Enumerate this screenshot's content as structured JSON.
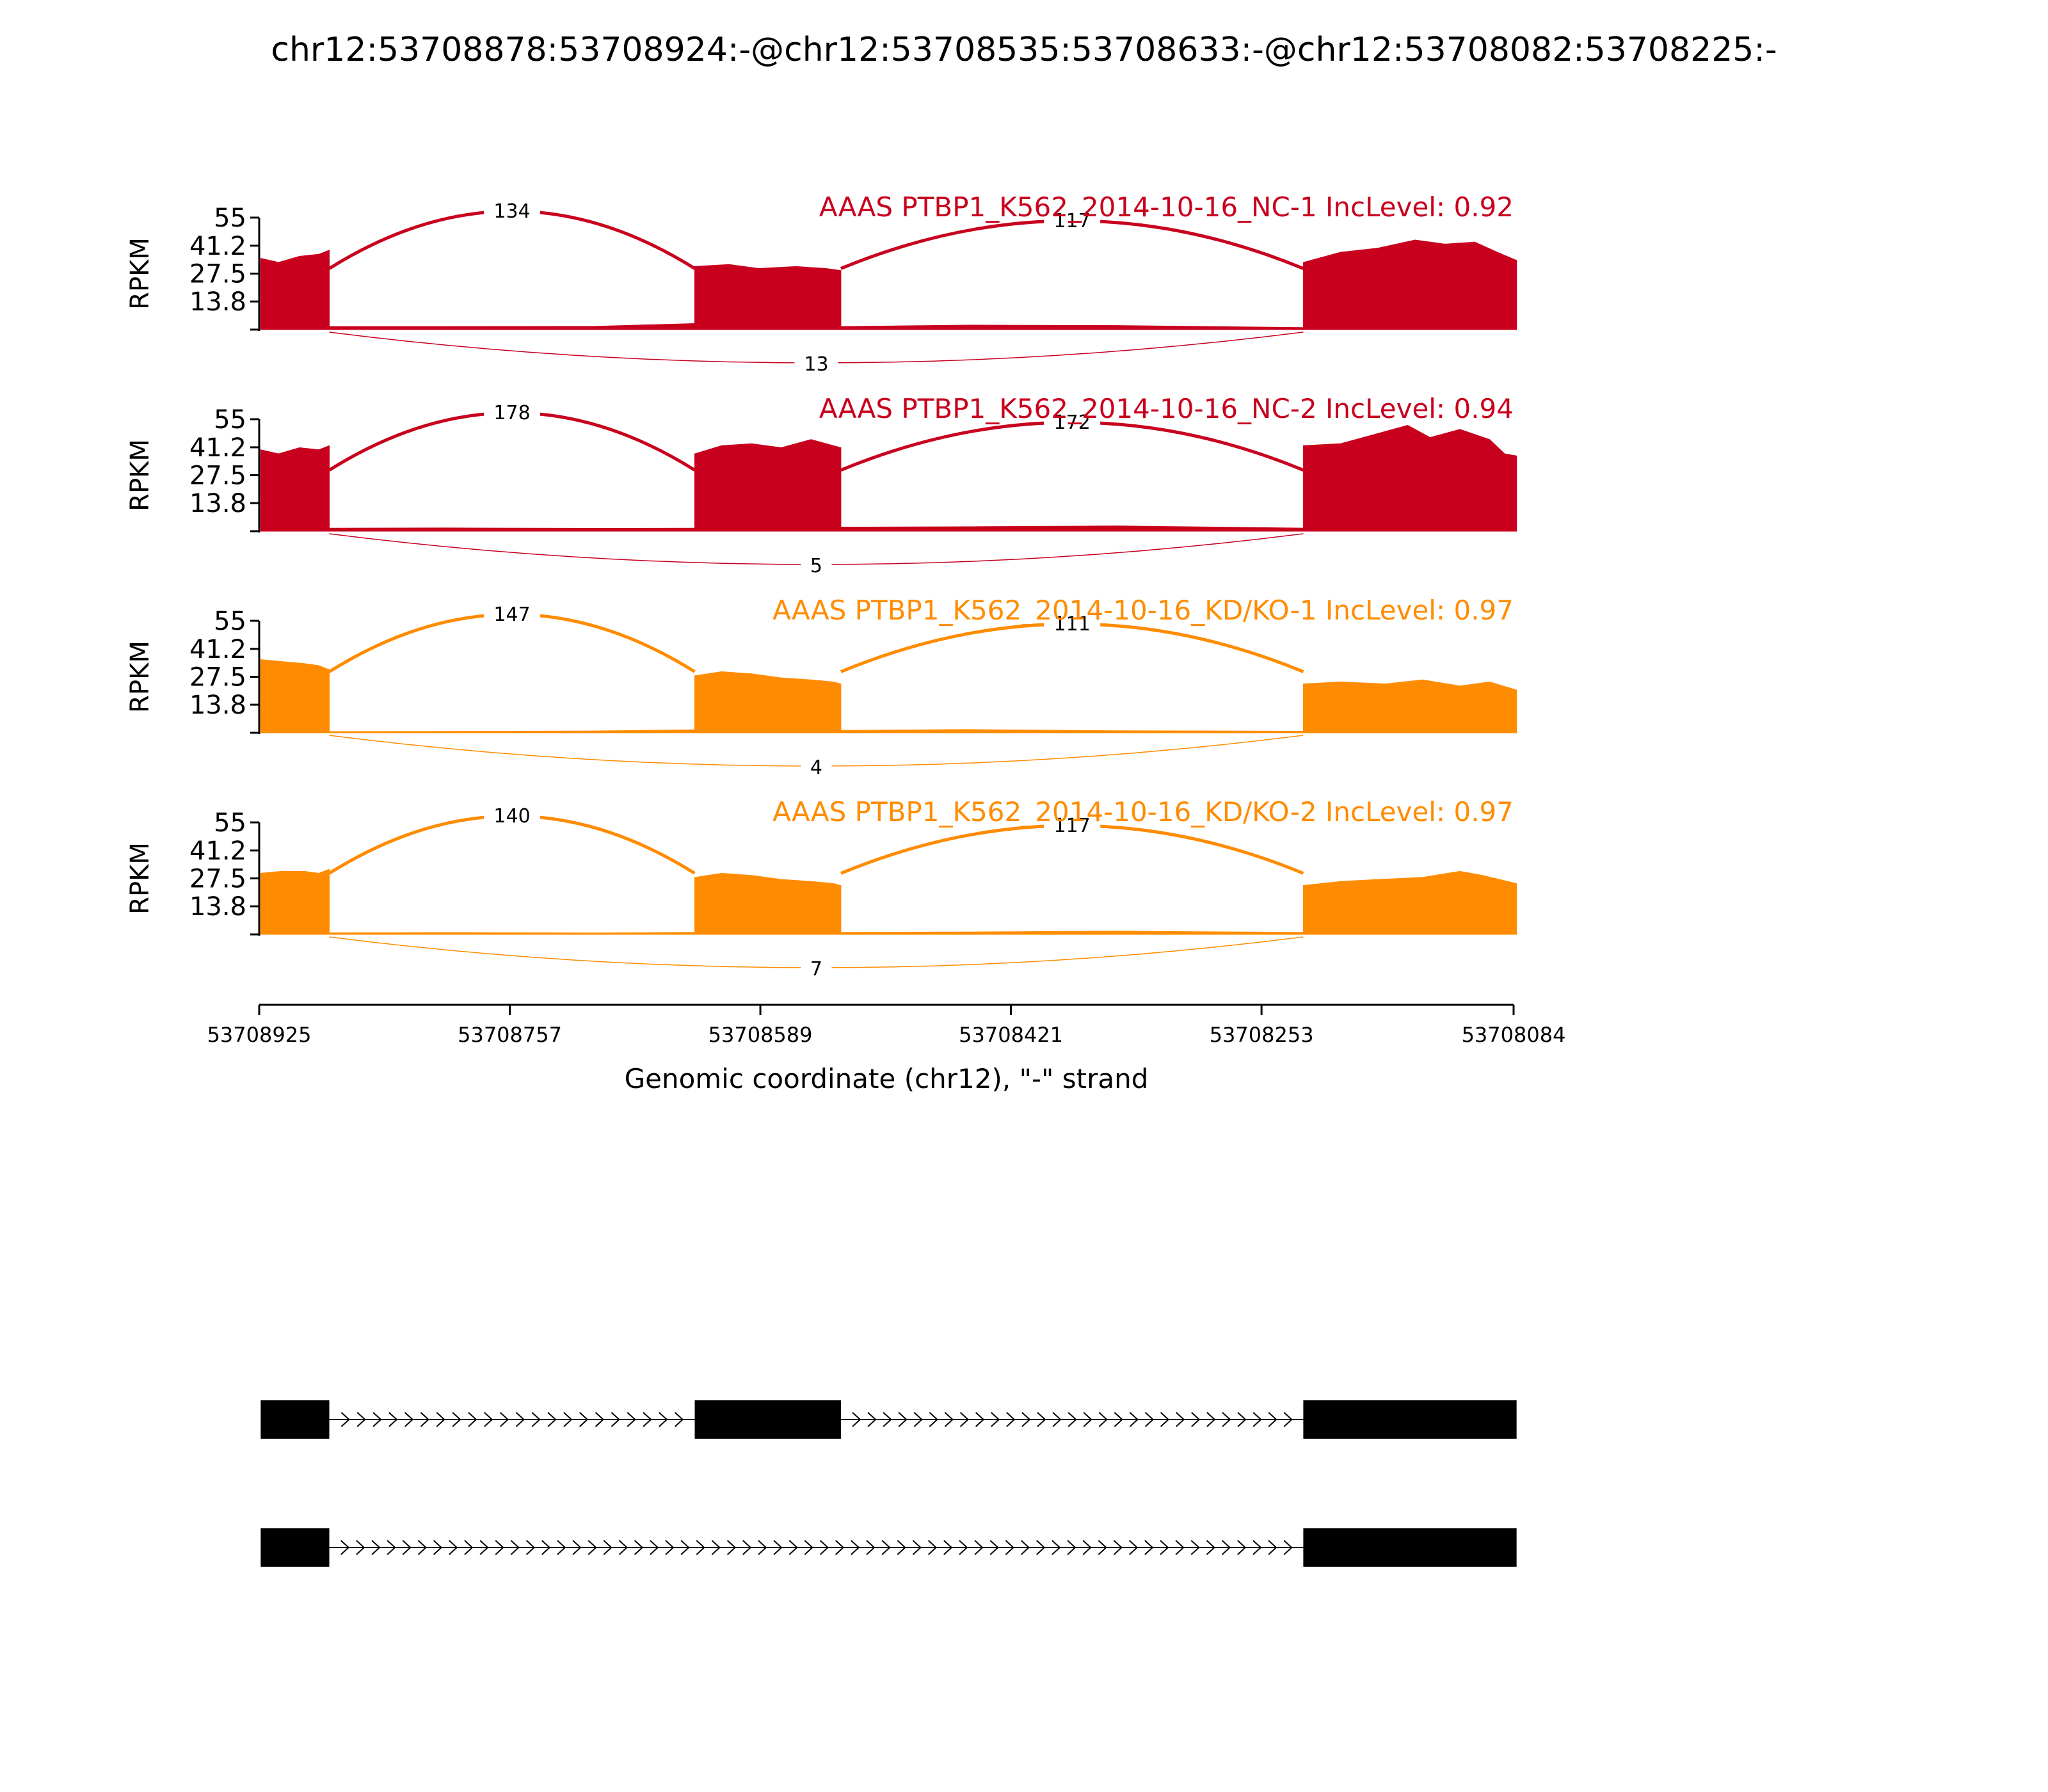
{
  "chart_data": {
    "type": "area",
    "title": "chr12:53708878:53708924:-@chr12:53708535:53708633:-@chr12:53708082:53708225:-",
    "ylabel": "RPKM",
    "xlabel": "Genomic coordinate (chr12), \"-\" strand",
    "x_range": [
      53708925,
      53708084
    ],
    "x_ticks": [
      "53708925",
      "53708757",
      "53708589",
      "53708421",
      "53708253",
      "53708084"
    ],
    "y_ticks": [
      "55",
      "41.2",
      "27.5",
      "13.8"
    ],
    "ylim": [
      0,
      55
    ],
    "exons": [
      [
        53708924,
        53708878
      ],
      [
        53708633,
        53708535
      ],
      [
        53708225,
        53708082
      ]
    ],
    "colors": {
      "NC": "#c8001e",
      "KD": "#ff8c00"
    },
    "series": [
      {
        "name": "AAAS PTBP1_K562_2014-10-16_NC-1 IncLevel: 0.92",
        "group": "NC",
        "coverage": [
          {
            "x": [
              53708924,
              53708912,
              53708898,
              53708885,
              53708878
            ],
            "y": [
              35,
              33,
              36,
              37,
              39
            ]
          },
          {
            "x": [
              53708878,
              53708800,
              53708700,
              53708633
            ],
            "y": [
              1.5,
              1.5,
              1.6,
              3
            ]
          },
          {
            "x": [
              53708633,
              53708610,
              53708590,
              53708565,
              53708545,
              53708535
            ],
            "y": [
              31,
              32,
              30,
              31,
              30,
              29
            ]
          },
          {
            "x": [
              53708535,
              53708450,
              53708350,
              53708225
            ],
            "y": [
              1.5,
              2.2,
              2.0,
              1
            ]
          },
          {
            "x": [
              53708225,
              53708200,
              53708175,
              53708150,
              53708130,
              53708110,
              53708095,
              53708082
            ],
            "y": [
              33,
              38,
              40,
              44,
              42,
              43,
              38,
              34
            ]
          }
        ],
        "junctions": [
          {
            "from": 53708878,
            "to": 53708633,
            "count": "134",
            "side": "above"
          },
          {
            "from": 53708535,
            "to": 53708225,
            "count": "117",
            "side": "above"
          },
          {
            "from": 53708878,
            "to": 53708225,
            "count": "13",
            "side": "below"
          }
        ]
      },
      {
        "name": "AAAS PTBP1_K562_2014-10-16_NC-2 IncLevel: 0.94",
        "group": "NC",
        "coverage": [
          {
            "x": [
              53708924,
              53708912,
              53708898,
              53708885,
              53708878
            ],
            "y": [
              40,
              38,
              41,
              40,
              42
            ]
          },
          {
            "x": [
              53708878,
              53708800,
              53708700,
              53708633
            ],
            "y": [
              1.5,
              1.6,
              1.4,
              1.5
            ]
          },
          {
            "x": [
              53708633,
              53708615,
              53708595,
              53708575,
              53708555,
              53708540,
              53708535
            ],
            "y": [
              38,
              42,
              43,
              41,
              45,
              42,
              41
            ]
          },
          {
            "x": [
              53708535,
              53708450,
              53708350,
              53708225
            ],
            "y": [
              2,
              2.2,
              2.6,
              1.5
            ]
          },
          {
            "x": [
              53708225,
              53708200,
              53708175,
              53708155,
              53708140,
              53708120,
              53708100,
              53708090,
              53708082
            ],
            "y": [
              42,
              43,
              48,
              52,
              46,
              50,
              45,
              38,
              37
            ]
          }
        ],
        "junctions": [
          {
            "from": 53708878,
            "to": 53708633,
            "count": "178",
            "side": "above"
          },
          {
            "from": 53708535,
            "to": 53708225,
            "count": "172",
            "side": "above"
          },
          {
            "from": 53708878,
            "to": 53708225,
            "count": "5",
            "side": "below"
          }
        ]
      },
      {
        "name": "AAAS PTBP1_K562_2014-10-16_KD/KO-1 IncLevel: 0.97",
        "group": "KD",
        "coverage": [
          {
            "x": [
              53708924,
              53708910,
              53708895,
              53708885,
              53708878
            ],
            "y": [
              36,
              35,
              34,
              33,
              31
            ]
          },
          {
            "x": [
              53708878,
              53708800,
              53708700,
              53708633
            ],
            "y": [
              0.6,
              0.7,
              0.9,
              1.5
            ]
          },
          {
            "x": [
              53708633,
              53708615,
              53708595,
              53708575,
              53708555,
              53708540,
              53708535
            ],
            "y": [
              28,
              30,
              29,
              27,
              26,
              25,
              24
            ]
          },
          {
            "x": [
              53708535,
              53708450,
              53708350,
              53708225
            ],
            "y": [
              1.2,
              1.6,
              1.0,
              0.8
            ]
          },
          {
            "x": [
              53708225,
              53708200,
              53708170,
              53708145,
              53708120,
              53708100,
              53708082
            ],
            "y": [
              24,
              25,
              24,
              26,
              23,
              25,
              21
            ]
          }
        ],
        "junctions": [
          {
            "from": 53708878,
            "to": 53708633,
            "count": "147",
            "side": "above"
          },
          {
            "from": 53708535,
            "to": 53708225,
            "count": "111",
            "side": "above"
          },
          {
            "from": 53708878,
            "to": 53708225,
            "count": "4",
            "side": "below"
          }
        ]
      },
      {
        "name": "AAAS PTBP1_K562_2014-10-16_KD/KO-2 IncLevel: 0.97",
        "group": "KD",
        "coverage": [
          {
            "x": [
              53708924,
              53708910,
              53708895,
              53708885,
              53708878
            ],
            "y": [
              30,
              31,
              31,
              30,
              32
            ]
          },
          {
            "x": [
              53708878,
              53708800,
              53708700,
              53708633
            ],
            "y": [
              0.8,
              0.9,
              0.7,
              1
            ]
          },
          {
            "x": [
              53708633,
              53708615,
              53708595,
              53708575,
              53708555,
              53708540,
              53708535
            ],
            "y": [
              28,
              30,
              29,
              27,
              26,
              25,
              24
            ]
          },
          {
            "x": [
              53708535,
              53708450,
              53708350,
              53708225
            ],
            "y": [
              1.0,
              1.2,
              1.6,
              1
            ]
          },
          {
            "x": [
              53708225,
              53708200,
              53708175,
              53708145,
              53708120,
              53708105,
              53708082
            ],
            "y": [
              24,
              26,
              27,
              28,
              31,
              29,
              25
            ]
          }
        ],
        "junctions": [
          {
            "from": 53708878,
            "to": 53708633,
            "count": "140",
            "side": "above"
          },
          {
            "from": 53708535,
            "to": 53708225,
            "count": "117",
            "side": "above"
          },
          {
            "from": 53708878,
            "to": 53708225,
            "count": "7",
            "side": "below"
          }
        ]
      }
    ],
    "isoforms": [
      {
        "exons": [
          [
            53708924,
            53708878
          ],
          [
            53708633,
            53708535
          ],
          [
            53708225,
            53708082
          ]
        ]
      },
      {
        "exons": [
          [
            53708924,
            53708878
          ],
          [
            53708225,
            53708082
          ]
        ]
      }
    ]
  }
}
